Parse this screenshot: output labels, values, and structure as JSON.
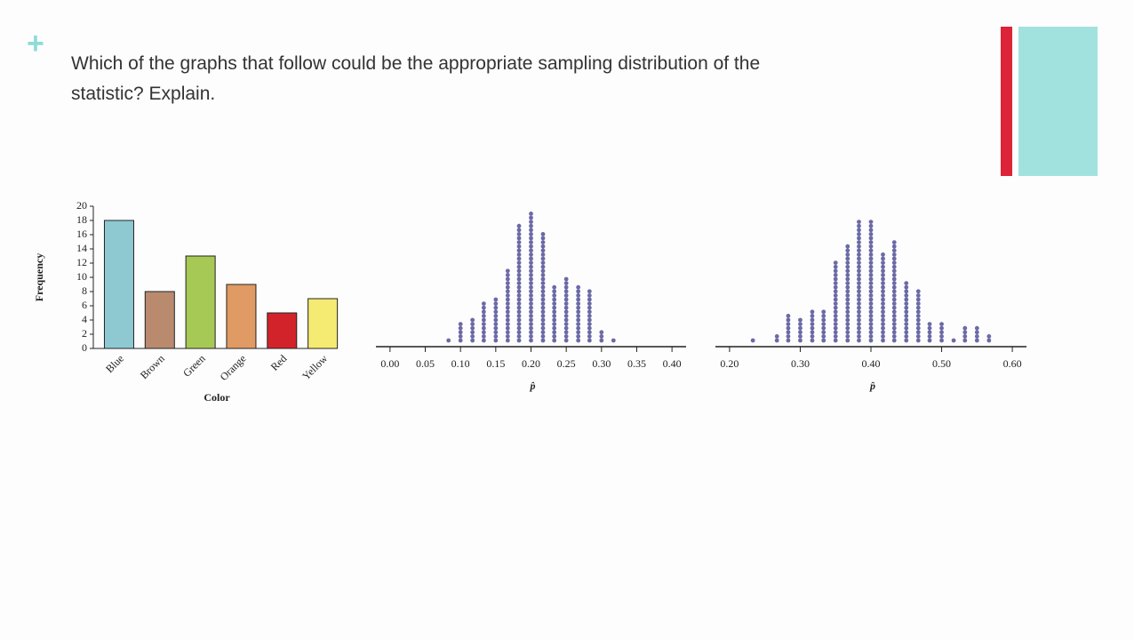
{
  "slide": {
    "marker": "+",
    "text": [
      "Which of the graphs that follow could be the appropriate sampling distribution of the",
      "statistic? Explain."
    ]
  },
  "chart_data": [
    {
      "type": "bar",
      "categories": [
        "Blue",
        "Brown",
        "Green",
        "Orange",
        "Red",
        "Yellow"
      ],
      "values": [
        18,
        8,
        13,
        9,
        5,
        7
      ],
      "colors": [
        "#8ec9d2",
        "#b98a6e",
        "#a6c955",
        "#e09a63",
        "#d2232a",
        "#f5ea72"
      ],
      "ylim": [
        0,
        20
      ],
      "yticks": [
        0,
        2,
        4,
        6,
        8,
        10,
        12,
        14,
        16,
        18,
        20
      ],
      "ylabel": "Frequency",
      "xlabel": "Color"
    },
    {
      "type": "dot",
      "color": "#6b6aa6",
      "xlabel": "p̂",
      "x": [
        0.083,
        0.1,
        0.117,
        0.133,
        0.15,
        0.167,
        0.183,
        0.2,
        0.217,
        0.233,
        0.25,
        0.267,
        0.283,
        0.3,
        0.317
      ],
      "counts": [
        1,
        5,
        6,
        10,
        11,
        18,
        29,
        32,
        27,
        14,
        16,
        14,
        13,
        3,
        1
      ],
      "xlim": [
        -0.02,
        0.42
      ],
      "xticks": [
        {
          "value": 0,
          "label": "0.00"
        },
        {
          "value": 0.05,
          "label": "0.05"
        },
        {
          "value": 0.1,
          "label": "0.10"
        },
        {
          "value": 0.15,
          "label": "0.15"
        },
        {
          "value": 0.2,
          "label": "0.20"
        },
        {
          "value": 0.25,
          "label": "0.25"
        },
        {
          "value": 0.3,
          "label": "0.30"
        },
        {
          "value": 0.35,
          "label": "0.35"
        },
        {
          "value": 0.4,
          "label": "0.40"
        }
      ]
    },
    {
      "type": "dot",
      "color": "#6b6aa6",
      "xlabel": "p̂",
      "x": [
        0.233,
        0.267,
        0.283,
        0.3,
        0.317,
        0.333,
        0.35,
        0.367,
        0.383,
        0.4,
        0.417,
        0.433,
        0.45,
        0.467,
        0.483,
        0.5,
        0.517,
        0.533,
        0.55,
        0.567
      ],
      "counts": [
        1,
        2,
        7,
        6,
        8,
        8,
        20,
        24,
        30,
        30,
        22,
        25,
        15,
        13,
        5,
        5,
        1,
        4,
        4,
        2
      ],
      "xlim": [
        0.18,
        0.62
      ],
      "xticks": [
        {
          "value": 0.2,
          "label": "0.20"
        },
        {
          "value": 0.3,
          "label": "0.30"
        },
        {
          "value": 0.4,
          "label": "0.40"
        },
        {
          "value": 0.5,
          "label": "0.50"
        },
        {
          "value": 0.6,
          "label": "0.60"
        }
      ]
    }
  ]
}
